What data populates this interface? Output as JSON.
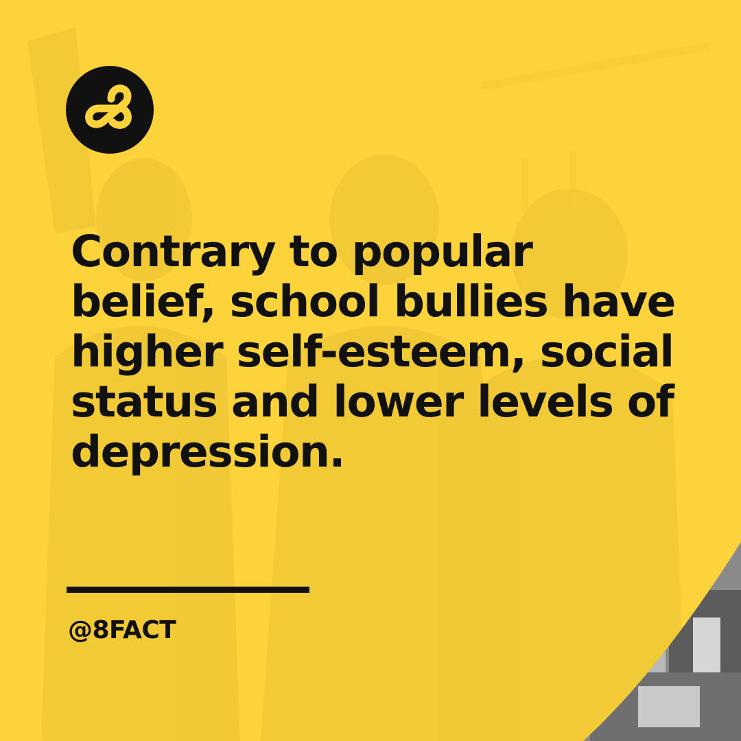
{
  "post": {
    "fact_text": "Contrary to popular\nbelief, school bullies have\nhigher self-esteem, social\nstatus and lower levels of\ndepression.",
    "handle": "@8FACT"
  },
  "brand": {
    "logo_icon": "infinity-8-icon",
    "accent_color": "#fcd33a",
    "ink_color": "#111111"
  }
}
